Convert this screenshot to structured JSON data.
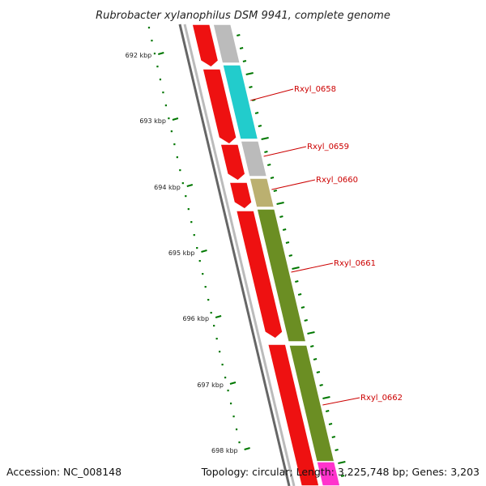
{
  "title": "Rubrobacter xylanophilus DSM 9941, complete genome",
  "footer": {
    "accession": "Accession: NC_008148",
    "summary": "Topology: circular; Length: 3,225,748 bp; Genes: 3,203"
  },
  "ruler": {
    "ticks": [
      "692 kbp",
      "693 kbp",
      "694 kbp",
      "695 kbp",
      "696 kbp",
      "697 kbp",
      "698 kbp"
    ],
    "tick_color": "#007700"
  },
  "genes": [
    {
      "name": "Rxyl_0658",
      "color": "#22cccc"
    },
    {
      "name": "Rxyl_0659",
      "color": "#bbbbbb"
    },
    {
      "name": "Rxyl_0660",
      "color": "#bbb070"
    },
    {
      "name": "Rxyl_0661",
      "color": "#6b8e23"
    },
    {
      "name": "Rxyl_0662",
      "color": "#6b8e23"
    }
  ],
  "colors": {
    "cds": "#ee1111",
    "backbone": "#888888",
    "label": "#cc0000"
  }
}
